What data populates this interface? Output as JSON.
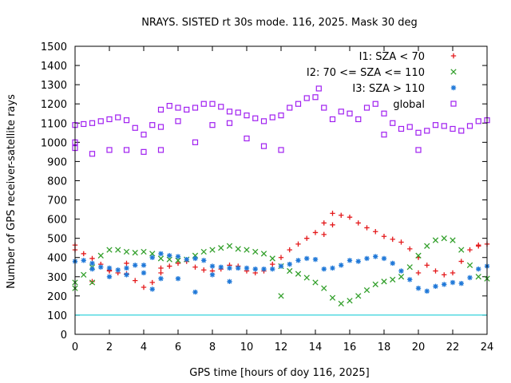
{
  "chart_data": {
    "type": "scatter",
    "title": "NRAYS. SISTED rt 30s mode. 116, 2025. Mask 30 deg",
    "xlabel": "GPS time [hours of doy 116, 2025]",
    "ylabel": "Number of GPS receiver-satellite rays",
    "xlim": [
      0,
      24
    ],
    "ylim": [
      0,
      1500
    ],
    "xticks": [
      0,
      2,
      4,
      6,
      8,
      10,
      12,
      14,
      16,
      18,
      20,
      22,
      24
    ],
    "yticks": [
      0,
      100,
      200,
      300,
      400,
      500,
      600,
      700,
      800,
      900,
      1000,
      1100,
      1200,
      1300,
      1400,
      1500
    ],
    "threshold_line": {
      "y": 100,
      "color": "#00c8d2"
    },
    "legend_position": "top-right",
    "series": [
      {
        "name": "I1: SZA < 70",
        "marker": "+",
        "color": "#e41a1c",
        "points": [
          [
            0,
            440
          ],
          [
            0.5,
            420
          ],
          [
            1,
            395
          ],
          [
            1.5,
            365
          ],
          [
            2,
            335
          ],
          [
            2.5,
            320
          ],
          [
            3,
            315
          ],
          [
            3.5,
            280
          ],
          [
            4,
            245
          ],
          [
            4.5,
            270
          ],
          [
            5,
            320
          ],
          [
            5.5,
            355
          ],
          [
            6,
            370
          ],
          [
            6.5,
            380
          ],
          [
            7,
            350
          ],
          [
            7.5,
            335
          ],
          [
            8,
            330
          ],
          [
            8.5,
            340
          ],
          [
            9,
            360
          ],
          [
            9.5,
            355
          ],
          [
            10,
            330
          ],
          [
            10.5,
            320
          ],
          [
            11,
            330
          ],
          [
            11.5,
            365
          ],
          [
            12,
            400
          ],
          [
            12.5,
            440
          ],
          [
            13,
            470
          ],
          [
            13.5,
            500
          ],
          [
            14,
            530
          ],
          [
            14.5,
            580
          ],
          [
            15,
            630
          ],
          [
            15.5,
            620
          ],
          [
            16,
            610
          ],
          [
            16.5,
            580
          ],
          [
            17,
            555
          ],
          [
            17.5,
            535
          ],
          [
            18,
            510
          ],
          [
            18.5,
            495
          ],
          [
            19,
            480
          ],
          [
            19.5,
            445
          ],
          [
            20,
            400
          ],
          [
            20.5,
            360
          ],
          [
            21,
            330
          ],
          [
            21.5,
            310
          ],
          [
            22,
            320
          ],
          [
            22.5,
            380
          ],
          [
            23,
            440
          ],
          [
            23.5,
            465
          ],
          [
            24,
            470
          ],
          [
            0,
            465
          ],
          [
            1,
            275
          ],
          [
            2,
            330
          ],
          [
            3,
            370
          ],
          [
            5,
            345
          ],
          [
            14.5,
            520
          ],
          [
            15,
            570
          ],
          [
            20,
            320
          ],
          [
            23.5,
            460
          ]
        ]
      },
      {
        "name": "I2: 70 <= SZA <= 110",
        "marker": "x",
        "color": "#33a02c",
        "points": [
          [
            0,
            270
          ],
          [
            0.5,
            310
          ],
          [
            1,
            350
          ],
          [
            1.5,
            410
          ],
          [
            2,
            440
          ],
          [
            2.5,
            440
          ],
          [
            3,
            430
          ],
          [
            3.5,
            425
          ],
          [
            4,
            430
          ],
          [
            4.5,
            420
          ],
          [
            5,
            395
          ],
          [
            5.5,
            390
          ],
          [
            6,
            385
          ],
          [
            6.5,
            390
          ],
          [
            7,
            410
          ],
          [
            7.5,
            430
          ],
          [
            8,
            440
          ],
          [
            8.5,
            450
          ],
          [
            9,
            460
          ],
          [
            9.5,
            445
          ],
          [
            10,
            440
          ],
          [
            10.5,
            430
          ],
          [
            11,
            420
          ],
          [
            11.5,
            395
          ],
          [
            12,
            355
          ],
          [
            12.5,
            330
          ],
          [
            13,
            315
          ],
          [
            13.5,
            295
          ],
          [
            14,
            270
          ],
          [
            14.5,
            240
          ],
          [
            15,
            190
          ],
          [
            15.5,
            160
          ],
          [
            16,
            175
          ],
          [
            16.5,
            200
          ],
          [
            17,
            230
          ],
          [
            17.5,
            260
          ],
          [
            18,
            275
          ],
          [
            18.5,
            285
          ],
          [
            19,
            300
          ],
          [
            19.5,
            350
          ],
          [
            20,
            410
          ],
          [
            20.5,
            460
          ],
          [
            21,
            490
          ],
          [
            21.5,
            500
          ],
          [
            22,
            490
          ],
          [
            22.5,
            440
          ],
          [
            23,
            360
          ],
          [
            23.5,
            300
          ],
          [
            24,
            290
          ],
          [
            0,
            240
          ],
          [
            1,
            270
          ],
          [
            12,
            200
          ]
        ]
      },
      {
        "name": "I3: SZA > 110",
        "marker": "*",
        "color": "#1f78d8",
        "points": [
          [
            0,
            380
          ],
          [
            0.5,
            385
          ],
          [
            1,
            370
          ],
          [
            1.5,
            350
          ],
          [
            2,
            345
          ],
          [
            2.5,
            335
          ],
          [
            3,
            345
          ],
          [
            3.5,
            360
          ],
          [
            4,
            360
          ],
          [
            4.5,
            400
          ],
          [
            5,
            420
          ],
          [
            5.5,
            410
          ],
          [
            6,
            405
          ],
          [
            6.5,
            390
          ],
          [
            7,
            395
          ],
          [
            7.5,
            385
          ],
          [
            8,
            355
          ],
          [
            8.5,
            350
          ],
          [
            9,
            345
          ],
          [
            9.5,
            345
          ],
          [
            10,
            345
          ],
          [
            10.5,
            340
          ],
          [
            11,
            340
          ],
          [
            11.5,
            340
          ],
          [
            12,
            355
          ],
          [
            12.5,
            365
          ],
          [
            13,
            385
          ],
          [
            13.5,
            395
          ],
          [
            14,
            390
          ],
          [
            14.5,
            340
          ],
          [
            15,
            345
          ],
          [
            15.5,
            360
          ],
          [
            16,
            385
          ],
          [
            16.5,
            380
          ],
          [
            17,
            395
          ],
          [
            17.5,
            405
          ],
          [
            18,
            395
          ],
          [
            18.5,
            370
          ],
          [
            19,
            330
          ],
          [
            19.5,
            285
          ],
          [
            20,
            240
          ],
          [
            20.5,
            225
          ],
          [
            21,
            250
          ],
          [
            21.5,
            260
          ],
          [
            22,
            270
          ],
          [
            22.5,
            265
          ],
          [
            23,
            295
          ],
          [
            23.5,
            340
          ],
          [
            24,
            355
          ],
          [
            1,
            340
          ],
          [
            2,
            300
          ],
          [
            3,
            310
          ],
          [
            4,
            320
          ],
          [
            4.5,
            235
          ],
          [
            5,
            290
          ],
          [
            6,
            290
          ],
          [
            7,
            220
          ],
          [
            8,
            310
          ],
          [
            9,
            275
          ]
        ]
      },
      {
        "name": "global",
        "marker": "square",
        "color": "#a020f0",
        "points": [
          [
            0,
            1090
          ],
          [
            0.5,
            1095
          ],
          [
            1,
            1100
          ],
          [
            1.5,
            1110
          ],
          [
            2,
            1120
          ],
          [
            2.5,
            1130
          ],
          [
            3,
            1115
          ],
          [
            3.5,
            1075
          ],
          [
            4,
            1040
          ],
          [
            4.5,
            1090
          ],
          [
            5,
            1170
          ],
          [
            5.5,
            1190
          ],
          [
            6,
            1180
          ],
          [
            6.5,
            1170
          ],
          [
            7,
            1180
          ],
          [
            7.5,
            1200
          ],
          [
            8,
            1200
          ],
          [
            8.5,
            1185
          ],
          [
            9,
            1160
          ],
          [
            9.5,
            1155
          ],
          [
            10,
            1140
          ],
          [
            10.5,
            1125
          ],
          [
            11,
            1110
          ],
          [
            11.5,
            1130
          ],
          [
            12,
            1140
          ],
          [
            12.5,
            1180
          ],
          [
            13,
            1200
          ],
          [
            13.5,
            1230
          ],
          [
            14,
            1235
          ],
          [
            14.2,
            1280
          ],
          [
            14.5,
            1180
          ],
          [
            15,
            1120
          ],
          [
            15.5,
            1160
          ],
          [
            16,
            1150
          ],
          [
            16.5,
            1120
          ],
          [
            17,
            1180
          ],
          [
            17.5,
            1200
          ],
          [
            18,
            1150
          ],
          [
            18.5,
            1100
          ],
          [
            19,
            1070
          ],
          [
            19.5,
            1080
          ],
          [
            20,
            1050
          ],
          [
            20.5,
            1060
          ],
          [
            21,
            1090
          ],
          [
            21.5,
            1085
          ],
          [
            22,
            1070
          ],
          [
            22.5,
            1060
          ],
          [
            23,
            1085
          ],
          [
            23.5,
            1110
          ],
          [
            24,
            1115
          ],
          [
            0,
            1000
          ],
          [
            0,
            970
          ],
          [
            1,
            940
          ],
          [
            2,
            960
          ],
          [
            3,
            960
          ],
          [
            4,
            950
          ],
          [
            5,
            960
          ],
          [
            5,
            1080
          ],
          [
            6,
            1110
          ],
          [
            7,
            1000
          ],
          [
            8,
            1090
          ],
          [
            9,
            1100
          ],
          [
            10,
            1020
          ],
          [
            11,
            980
          ],
          [
            12,
            960
          ],
          [
            18,
            1040
          ],
          [
            20,
            960
          ]
        ]
      }
    ]
  }
}
